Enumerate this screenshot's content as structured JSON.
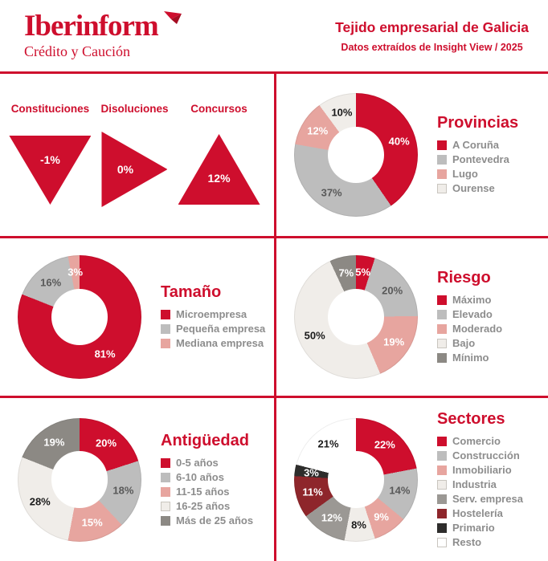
{
  "header": {
    "logo_text": "Iberinform",
    "logo_subtext": "Crédito y Caución",
    "title": "Tejido empresarial de Galicia",
    "subtitle": "Datos extraídos de Insight View / 2025"
  },
  "colors": {
    "accent_red": "#ce0e2d",
    "gray": "#bdbdbd",
    "pink": "#e7a59f",
    "light": "#f0ede9",
    "dark_gray": "#8c8984",
    "mid_gray": "#9b9894",
    "maroon": "#8e262b",
    "black": "#2e2d2c",
    "white": "#ffffff",
    "legend_text": "#8d8d8d"
  },
  "indicators": {
    "items": [
      {
        "label": "Constituciones",
        "value": "-1%",
        "direction": "down"
      },
      {
        "label": "Disoluciones",
        "value": "0%",
        "direction": "right"
      },
      {
        "label": "Concursos",
        "value": "12%",
        "direction": "up"
      }
    ]
  },
  "chart_data": [
    {
      "type": "pie",
      "title": "Provincias",
      "categories": [
        "A Coruña",
        "Pontevedra",
        "Lugo",
        "Ourense"
      ],
      "values": [
        40,
        37,
        12,
        10
      ],
      "display_values": [
        "40%",
        "37%",
        "12%",
        "10%"
      ],
      "colors": [
        "#ce0e2d",
        "#bdbdbd",
        "#e7a59f",
        "#f0ede9"
      ],
      "label_colors": [
        "#ffffff",
        "#595959",
        "#ffffff",
        "#1a1a1a"
      ],
      "legend_position": "right",
      "donut_hole": 0.46,
      "start_angle_deg": 0,
      "direction": "clockwise"
    },
    {
      "type": "pie",
      "title": "Tamaño",
      "categories": [
        "Microempresa",
        "Pequeña empresa",
        "Mediana empresa"
      ],
      "values": [
        81,
        16,
        3
      ],
      "display_values": [
        "81%",
        "16%",
        "3%"
      ],
      "colors": [
        "#ce0e2d",
        "#bdbdbd",
        "#e7a59f"
      ],
      "label_colors": [
        "#ffffff",
        "#595959",
        "#ffffff"
      ],
      "legend_position": "right",
      "donut_hole": 0.46,
      "start_angle_deg": 0,
      "direction": "clockwise"
    },
    {
      "type": "pie",
      "title": "Riesgo",
      "categories": [
        "Máximo",
        "Elevado",
        "Moderado",
        "Bajo",
        "Mínimo"
      ],
      "values": [
        5,
        20,
        19,
        50,
        7
      ],
      "display_values": [
        "5%",
        "20%",
        "19%",
        "50%",
        "7%"
      ],
      "colors": [
        "#ce0e2d",
        "#bdbdbd",
        "#e7a59f",
        "#f0ede9",
        "#8c8984"
      ],
      "label_colors": [
        "#ffffff",
        "#595959",
        "#ffffff",
        "#1a1a1a",
        "#ffffff"
      ],
      "legend_position": "right",
      "donut_hole": 0.46,
      "start_angle_deg": 0,
      "direction": "clockwise"
    },
    {
      "type": "pie",
      "title": "Antigüedad",
      "categories": [
        "0-5 años",
        "6-10 años",
        "11-15 años",
        "16-25 años",
        "Más de 25 años"
      ],
      "values": [
        20,
        18,
        15,
        28,
        19
      ],
      "display_values": [
        "20%",
        "18%",
        "15%",
        "28%",
        "19%"
      ],
      "colors": [
        "#ce0e2d",
        "#bdbdbd",
        "#e7a59f",
        "#f0ede9",
        "#8c8984"
      ],
      "label_colors": [
        "#ffffff",
        "#595959",
        "#ffffff",
        "#1a1a1a",
        "#ffffff"
      ],
      "legend_position": "right",
      "donut_hole": 0.46,
      "start_angle_deg": 0,
      "direction": "clockwise"
    },
    {
      "type": "pie",
      "title": "Sectores",
      "categories": [
        "Comercio",
        "Construcción",
        "Inmobiliario",
        "Industria",
        "Serv. empresa",
        "Hostelería",
        "Primario",
        "Resto"
      ],
      "values": [
        22,
        14,
        9,
        8,
        12,
        11,
        3,
        21
      ],
      "display_values": [
        "22%",
        "14%",
        "9%",
        "8%",
        "12%",
        "11%",
        "3%",
        "21%"
      ],
      "colors": [
        "#ce0e2d",
        "#bdbdbd",
        "#e7a59f",
        "#f0ede9",
        "#9b9894",
        "#8e262b",
        "#2e2d2c",
        "#ffffff"
      ],
      "label_colors": [
        "#ffffff",
        "#595959",
        "#ffffff",
        "#1a1a1a",
        "#ffffff",
        "#ffffff",
        "#ffffff",
        "#1a1a1a"
      ],
      "legend_position": "right",
      "donut_hole": 0.46,
      "start_angle_deg": 0,
      "direction": "clockwise"
    }
  ]
}
